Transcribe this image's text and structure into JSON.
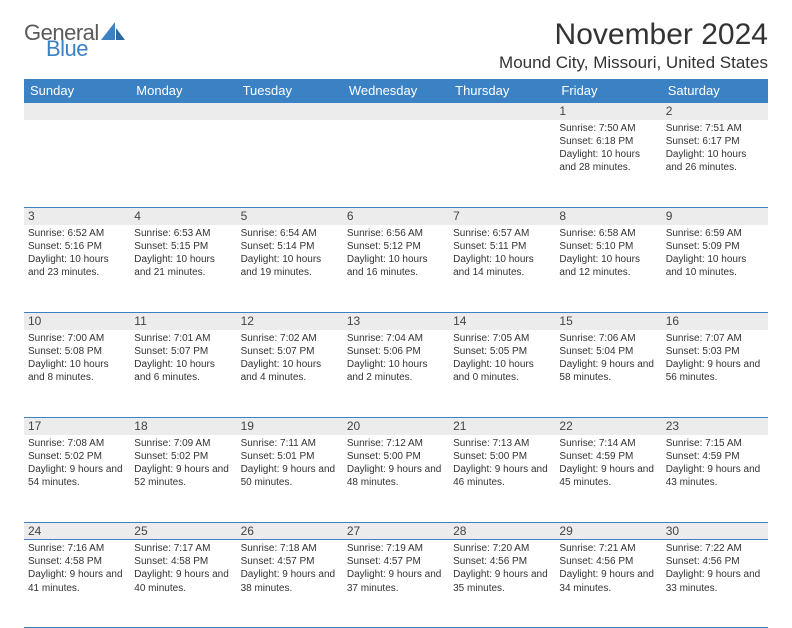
{
  "brand": {
    "general": "General",
    "blue": "Blue"
  },
  "title": "November 2024",
  "location": "Mound City, Missouri, United States",
  "colors": {
    "header_bg": "#3b82c4",
    "header_text": "#ffffff",
    "numrow_bg": "#ececec",
    "border": "#3b82c4",
    "text": "#333333",
    "logo_gray": "#5a5a5a",
    "logo_blue": "#3b82c4",
    "page_bg": "#ffffff"
  },
  "typography": {
    "title_fontsize": 30,
    "location_fontsize": 17,
    "dayheader_fontsize": 13,
    "daynum_fontsize": 12,
    "detail_fontsize": 10
  },
  "day_headers": [
    "Sunday",
    "Monday",
    "Tuesday",
    "Wednesday",
    "Thursday",
    "Friday",
    "Saturday"
  ],
  "weeks": [
    {
      "nums": [
        "",
        "",
        "",
        "",
        "",
        "1",
        "2"
      ],
      "days": [
        null,
        null,
        null,
        null,
        null,
        {
          "sunrise": "Sunrise: 7:50 AM",
          "sunset": "Sunset: 6:18 PM",
          "daylight": "Daylight: 10 hours and 28 minutes."
        },
        {
          "sunrise": "Sunrise: 7:51 AM",
          "sunset": "Sunset: 6:17 PM",
          "daylight": "Daylight: 10 hours and 26 minutes."
        }
      ]
    },
    {
      "nums": [
        "3",
        "4",
        "5",
        "6",
        "7",
        "8",
        "9"
      ],
      "days": [
        {
          "sunrise": "Sunrise: 6:52 AM",
          "sunset": "Sunset: 5:16 PM",
          "daylight": "Daylight: 10 hours and 23 minutes."
        },
        {
          "sunrise": "Sunrise: 6:53 AM",
          "sunset": "Sunset: 5:15 PM",
          "daylight": "Daylight: 10 hours and 21 minutes."
        },
        {
          "sunrise": "Sunrise: 6:54 AM",
          "sunset": "Sunset: 5:14 PM",
          "daylight": "Daylight: 10 hours and 19 minutes."
        },
        {
          "sunrise": "Sunrise: 6:56 AM",
          "sunset": "Sunset: 5:12 PM",
          "daylight": "Daylight: 10 hours and 16 minutes."
        },
        {
          "sunrise": "Sunrise: 6:57 AM",
          "sunset": "Sunset: 5:11 PM",
          "daylight": "Daylight: 10 hours and 14 minutes."
        },
        {
          "sunrise": "Sunrise: 6:58 AM",
          "sunset": "Sunset: 5:10 PM",
          "daylight": "Daylight: 10 hours and 12 minutes."
        },
        {
          "sunrise": "Sunrise: 6:59 AM",
          "sunset": "Sunset: 5:09 PM",
          "daylight": "Daylight: 10 hours and 10 minutes."
        }
      ]
    },
    {
      "nums": [
        "10",
        "11",
        "12",
        "13",
        "14",
        "15",
        "16"
      ],
      "days": [
        {
          "sunrise": "Sunrise: 7:00 AM",
          "sunset": "Sunset: 5:08 PM",
          "daylight": "Daylight: 10 hours and 8 minutes."
        },
        {
          "sunrise": "Sunrise: 7:01 AM",
          "sunset": "Sunset: 5:07 PM",
          "daylight": "Daylight: 10 hours and 6 minutes."
        },
        {
          "sunrise": "Sunrise: 7:02 AM",
          "sunset": "Sunset: 5:07 PM",
          "daylight": "Daylight: 10 hours and 4 minutes."
        },
        {
          "sunrise": "Sunrise: 7:04 AM",
          "sunset": "Sunset: 5:06 PM",
          "daylight": "Daylight: 10 hours and 2 minutes."
        },
        {
          "sunrise": "Sunrise: 7:05 AM",
          "sunset": "Sunset: 5:05 PM",
          "daylight": "Daylight: 10 hours and 0 minutes."
        },
        {
          "sunrise": "Sunrise: 7:06 AM",
          "sunset": "Sunset: 5:04 PM",
          "daylight": "Daylight: 9 hours and 58 minutes."
        },
        {
          "sunrise": "Sunrise: 7:07 AM",
          "sunset": "Sunset: 5:03 PM",
          "daylight": "Daylight: 9 hours and 56 minutes."
        }
      ]
    },
    {
      "nums": [
        "17",
        "18",
        "19",
        "20",
        "21",
        "22",
        "23"
      ],
      "days": [
        {
          "sunrise": "Sunrise: 7:08 AM",
          "sunset": "Sunset: 5:02 PM",
          "daylight": "Daylight: 9 hours and 54 minutes."
        },
        {
          "sunrise": "Sunrise: 7:09 AM",
          "sunset": "Sunset: 5:02 PM",
          "daylight": "Daylight: 9 hours and 52 minutes."
        },
        {
          "sunrise": "Sunrise: 7:11 AM",
          "sunset": "Sunset: 5:01 PM",
          "daylight": "Daylight: 9 hours and 50 minutes."
        },
        {
          "sunrise": "Sunrise: 7:12 AM",
          "sunset": "Sunset: 5:00 PM",
          "daylight": "Daylight: 9 hours and 48 minutes."
        },
        {
          "sunrise": "Sunrise: 7:13 AM",
          "sunset": "Sunset: 5:00 PM",
          "daylight": "Daylight: 9 hours and 46 minutes."
        },
        {
          "sunrise": "Sunrise: 7:14 AM",
          "sunset": "Sunset: 4:59 PM",
          "daylight": "Daylight: 9 hours and 45 minutes."
        },
        {
          "sunrise": "Sunrise: 7:15 AM",
          "sunset": "Sunset: 4:59 PM",
          "daylight": "Daylight: 9 hours and 43 minutes."
        }
      ]
    },
    {
      "nums": [
        "24",
        "25",
        "26",
        "27",
        "28",
        "29",
        "30"
      ],
      "days": [
        {
          "sunrise": "Sunrise: 7:16 AM",
          "sunset": "Sunset: 4:58 PM",
          "daylight": "Daylight: 9 hours and 41 minutes."
        },
        {
          "sunrise": "Sunrise: 7:17 AM",
          "sunset": "Sunset: 4:58 PM",
          "daylight": "Daylight: 9 hours and 40 minutes."
        },
        {
          "sunrise": "Sunrise: 7:18 AM",
          "sunset": "Sunset: 4:57 PM",
          "daylight": "Daylight: 9 hours and 38 minutes."
        },
        {
          "sunrise": "Sunrise: 7:19 AM",
          "sunset": "Sunset: 4:57 PM",
          "daylight": "Daylight: 9 hours and 37 minutes."
        },
        {
          "sunrise": "Sunrise: 7:20 AM",
          "sunset": "Sunset: 4:56 PM",
          "daylight": "Daylight: 9 hours and 35 minutes."
        },
        {
          "sunrise": "Sunrise: 7:21 AM",
          "sunset": "Sunset: 4:56 PM",
          "daylight": "Daylight: 9 hours and 34 minutes."
        },
        {
          "sunrise": "Sunrise: 7:22 AM",
          "sunset": "Sunset: 4:56 PM",
          "daylight": "Daylight: 9 hours and 33 minutes."
        }
      ]
    }
  ]
}
